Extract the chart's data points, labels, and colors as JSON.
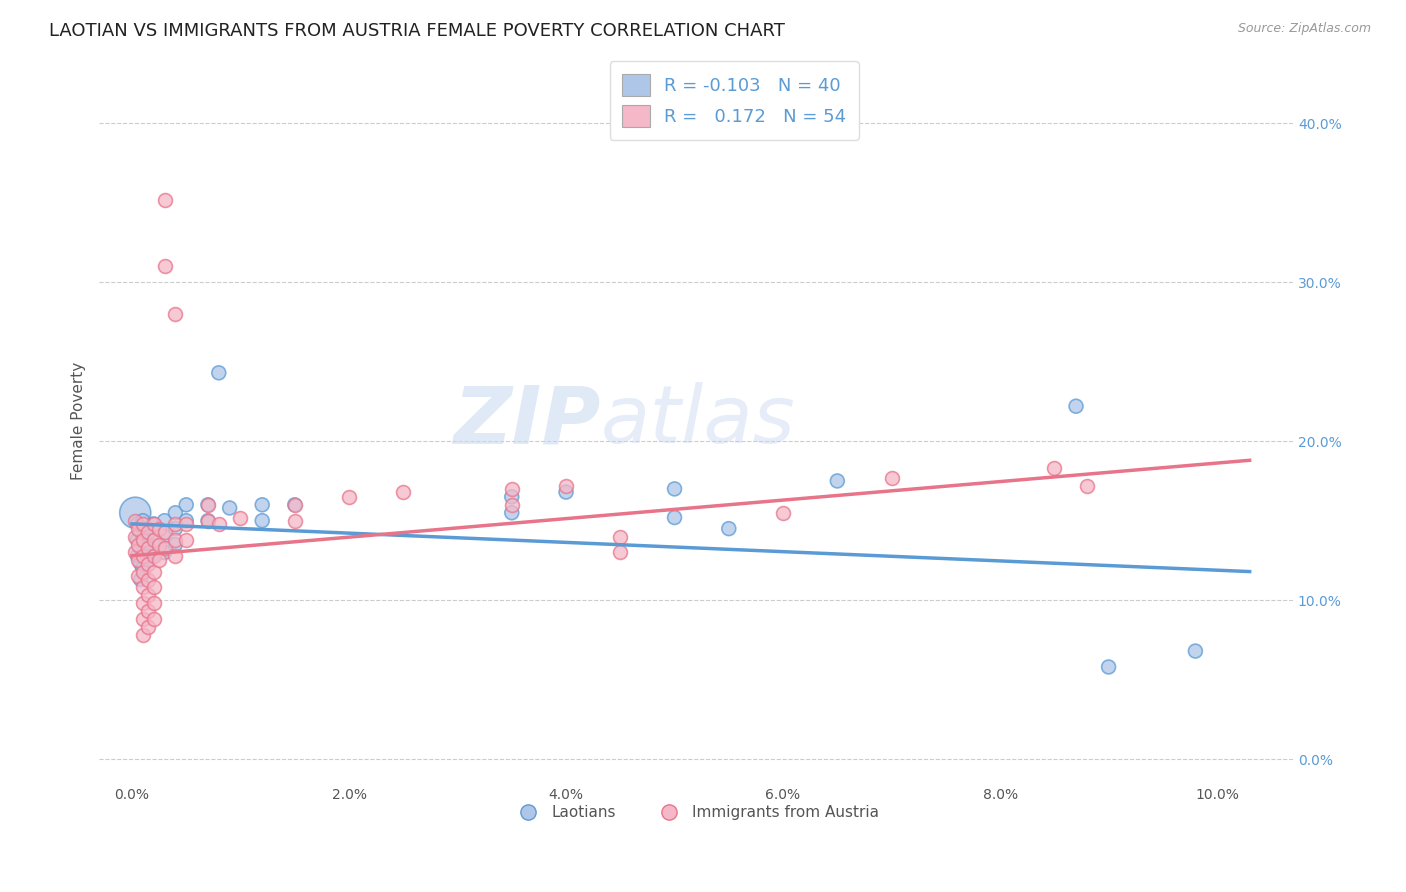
{
  "title": "LAOTIAN VS IMMIGRANTS FROM AUSTRIA FEMALE POVERTY CORRELATION CHART",
  "source": "Source: ZipAtlas.com",
  "ylabel": "Female Poverty",
  "x_ticks": [
    0.0,
    0.02,
    0.04,
    0.06,
    0.08,
    0.1
  ],
  "x_tick_labels": [
    "0.0%",
    "2.0%",
    "4.0%",
    "6.0%",
    "8.0%",
    "10.0%"
  ],
  "y_ticks": [
    0.0,
    0.1,
    0.2,
    0.3,
    0.4
  ],
  "y_tick_labels_right": [
    "0.0%",
    "10.0%",
    "20.0%",
    "30.0%",
    "40.0%"
  ],
  "xlim": [
    -0.003,
    0.107
  ],
  "ylim": [
    -0.015,
    0.44
  ],
  "background_color": "#ffffff",
  "grid_color": "#cccccc",
  "watermark_text": "ZIP",
  "watermark_text2": "atlas",
  "blue_scatter": [
    [
      0.0003,
      0.155
    ],
    [
      0.0005,
      0.148
    ],
    [
      0.0005,
      0.138
    ],
    [
      0.0005,
      0.128
    ],
    [
      0.0008,
      0.143
    ],
    [
      0.0008,
      0.133
    ],
    [
      0.0008,
      0.123
    ],
    [
      0.0008,
      0.113
    ],
    [
      0.001,
      0.15
    ],
    [
      0.001,
      0.14
    ],
    [
      0.001,
      0.13
    ],
    [
      0.001,
      0.12
    ],
    [
      0.0015,
      0.145
    ],
    [
      0.0015,
      0.135
    ],
    [
      0.0015,
      0.125
    ],
    [
      0.002,
      0.148
    ],
    [
      0.002,
      0.138
    ],
    [
      0.002,
      0.128
    ],
    [
      0.003,
      0.15
    ],
    [
      0.003,
      0.14
    ],
    [
      0.003,
      0.13
    ],
    [
      0.004,
      0.155
    ],
    [
      0.004,
      0.145
    ],
    [
      0.004,
      0.135
    ],
    [
      0.005,
      0.16
    ],
    [
      0.005,
      0.15
    ],
    [
      0.007,
      0.16
    ],
    [
      0.007,
      0.15
    ],
    [
      0.008,
      0.243
    ],
    [
      0.009,
      0.158
    ],
    [
      0.012,
      0.16
    ],
    [
      0.012,
      0.15
    ],
    [
      0.015,
      0.16
    ],
    [
      0.035,
      0.165
    ],
    [
      0.035,
      0.155
    ],
    [
      0.04,
      0.168
    ],
    [
      0.05,
      0.17
    ],
    [
      0.05,
      0.152
    ],
    [
      0.055,
      0.145
    ],
    [
      0.065,
      0.175
    ],
    [
      0.087,
      0.222
    ],
    [
      0.09,
      0.058
    ],
    [
      0.098,
      0.068
    ]
  ],
  "blue_scatter_sizes": [
    500,
    100,
    100,
    100,
    100,
    100,
    100,
    100,
    100,
    100,
    100,
    100,
    100,
    100,
    100,
    100,
    100,
    100,
    100,
    100,
    100,
    100,
    100,
    100,
    100,
    100,
    100,
    100,
    100,
    100,
    100,
    100,
    100,
    100,
    100,
    100,
    100,
    100,
    100,
    100,
    100,
    100,
    100
  ],
  "pink_scatter": [
    [
      0.0003,
      0.15
    ],
    [
      0.0003,
      0.14
    ],
    [
      0.0003,
      0.13
    ],
    [
      0.0006,
      0.145
    ],
    [
      0.0006,
      0.135
    ],
    [
      0.0006,
      0.125
    ],
    [
      0.0006,
      0.115
    ],
    [
      0.001,
      0.148
    ],
    [
      0.001,
      0.138
    ],
    [
      0.001,
      0.128
    ],
    [
      0.001,
      0.118
    ],
    [
      0.001,
      0.108
    ],
    [
      0.001,
      0.098
    ],
    [
      0.001,
      0.088
    ],
    [
      0.001,
      0.078
    ],
    [
      0.0015,
      0.143
    ],
    [
      0.0015,
      0.133
    ],
    [
      0.0015,
      0.123
    ],
    [
      0.0015,
      0.113
    ],
    [
      0.0015,
      0.103
    ],
    [
      0.0015,
      0.093
    ],
    [
      0.0015,
      0.083
    ],
    [
      0.002,
      0.148
    ],
    [
      0.002,
      0.138
    ],
    [
      0.002,
      0.128
    ],
    [
      0.002,
      0.118
    ],
    [
      0.002,
      0.108
    ],
    [
      0.002,
      0.098
    ],
    [
      0.002,
      0.088
    ],
    [
      0.0025,
      0.145
    ],
    [
      0.0025,
      0.135
    ],
    [
      0.0025,
      0.125
    ],
    [
      0.003,
      0.352
    ],
    [
      0.003,
      0.31
    ],
    [
      0.003,
      0.143
    ],
    [
      0.003,
      0.133
    ],
    [
      0.004,
      0.28
    ],
    [
      0.004,
      0.148
    ],
    [
      0.004,
      0.138
    ],
    [
      0.004,
      0.128
    ],
    [
      0.005,
      0.148
    ],
    [
      0.005,
      0.138
    ],
    [
      0.007,
      0.16
    ],
    [
      0.007,
      0.15
    ],
    [
      0.008,
      0.148
    ],
    [
      0.01,
      0.152
    ],
    [
      0.015,
      0.16
    ],
    [
      0.015,
      0.15
    ],
    [
      0.02,
      0.165
    ],
    [
      0.025,
      0.168
    ],
    [
      0.035,
      0.17
    ],
    [
      0.035,
      0.16
    ],
    [
      0.04,
      0.172
    ],
    [
      0.045,
      0.14
    ],
    [
      0.045,
      0.13
    ],
    [
      0.06,
      0.155
    ],
    [
      0.07,
      0.177
    ],
    [
      0.085,
      0.183
    ],
    [
      0.088,
      0.172
    ]
  ],
  "blue_line_x": [
    0.0,
    0.103
  ],
  "blue_line_y": [
    0.148,
    0.118
  ],
  "pink_line_x": [
    0.0,
    0.103
  ],
  "pink_line_y": [
    0.128,
    0.188
  ],
  "blue_color": "#5b9bd5",
  "blue_fill": "#aec6e8",
  "pink_color": "#e8748a",
  "pink_fill": "#f4b8c8",
  "title_fontsize": 13,
  "axis_label_fontsize": 11,
  "tick_fontsize": 10,
  "legend1_R1": "-0.103",
  "legend1_N1": "40",
  "legend1_R2": "0.172",
  "legend1_N2": "54",
  "legend_label1": "Laotians",
  "legend_label2": "Immigrants from Austria"
}
